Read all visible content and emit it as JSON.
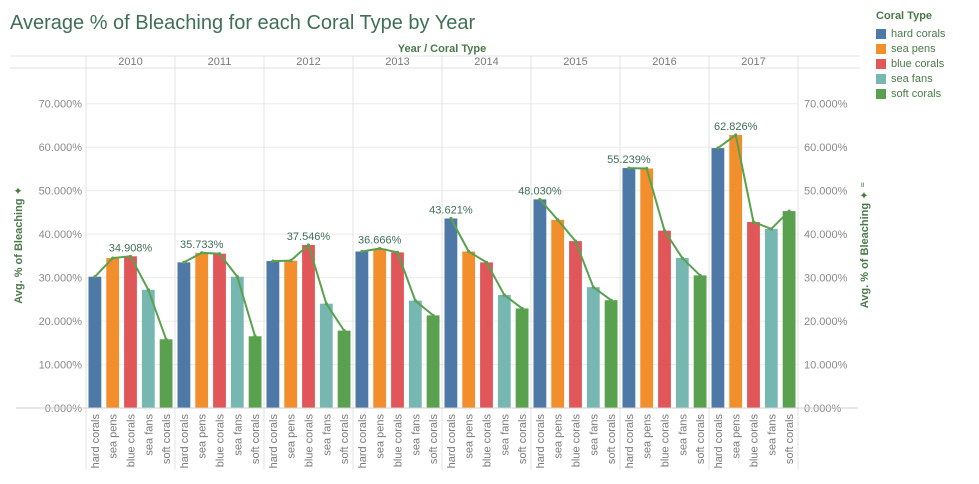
{
  "title": "Average % of Bleaching for each Coral Type by Year",
  "legend": {
    "title": "Coral Type",
    "items": [
      {
        "label": "hard corals",
        "color": "#4e79a7"
      },
      {
        "label": "sea pens",
        "color": "#f28e2b"
      },
      {
        "label": "blue corals",
        "color": "#e15759"
      },
      {
        "label": "sea fans",
        "color": "#76b7b2"
      },
      {
        "label": "soft corals",
        "color": "#59a14f"
      }
    ]
  },
  "chart_data": {
    "type": "bar",
    "title": "Average % of Bleaching for each Coral Type by Year",
    "column_header": "Year / Coral Type",
    "ylabel": "Avg. % of Bleaching",
    "ylabel_right": "Avg. % of Bleaching",
    "ylim": [
      0,
      0.75
    ],
    "yticks": [
      "0.000%",
      "10.000%",
      "20.000%",
      "30.000%",
      "40.000%",
      "50.000%",
      "60.000%",
      "70.000%"
    ],
    "years": [
      "2010",
      "2011",
      "2012",
      "2013",
      "2014",
      "2015",
      "2016",
      "2017"
    ],
    "categories": [
      "hard corals",
      "sea pens",
      "blue corals",
      "sea fans",
      "soft corals"
    ],
    "colors": [
      "#4e79a7",
      "#f28e2b",
      "#e15759",
      "#76b7b2",
      "#59a14f"
    ],
    "line_color": "#59a14f",
    "values": [
      [
        0.302,
        0.345,
        0.349,
        0.272,
        0.158
      ],
      [
        0.335,
        0.357,
        0.355,
        0.302,
        0.165
      ],
      [
        0.338,
        0.339,
        0.375,
        0.24,
        0.178
      ],
      [
        0.36,
        0.367,
        0.358,
        0.247,
        0.213
      ],
      [
        0.436,
        0.36,
        0.335,
        0.26,
        0.229
      ],
      [
        0.48,
        0.433,
        0.384,
        0.278,
        0.248
      ],
      [
        0.552,
        0.551,
        0.408,
        0.345,
        0.305
      ],
      [
        0.598,
        0.628,
        0.428,
        0.412,
        0.453
      ]
    ],
    "max_labels": [
      "34.908%",
      "35.733%",
      "37.546%",
      "36.666%",
      "43.621%",
      "48.030%",
      "55.239%",
      "62.826%"
    ],
    "grid": true
  }
}
